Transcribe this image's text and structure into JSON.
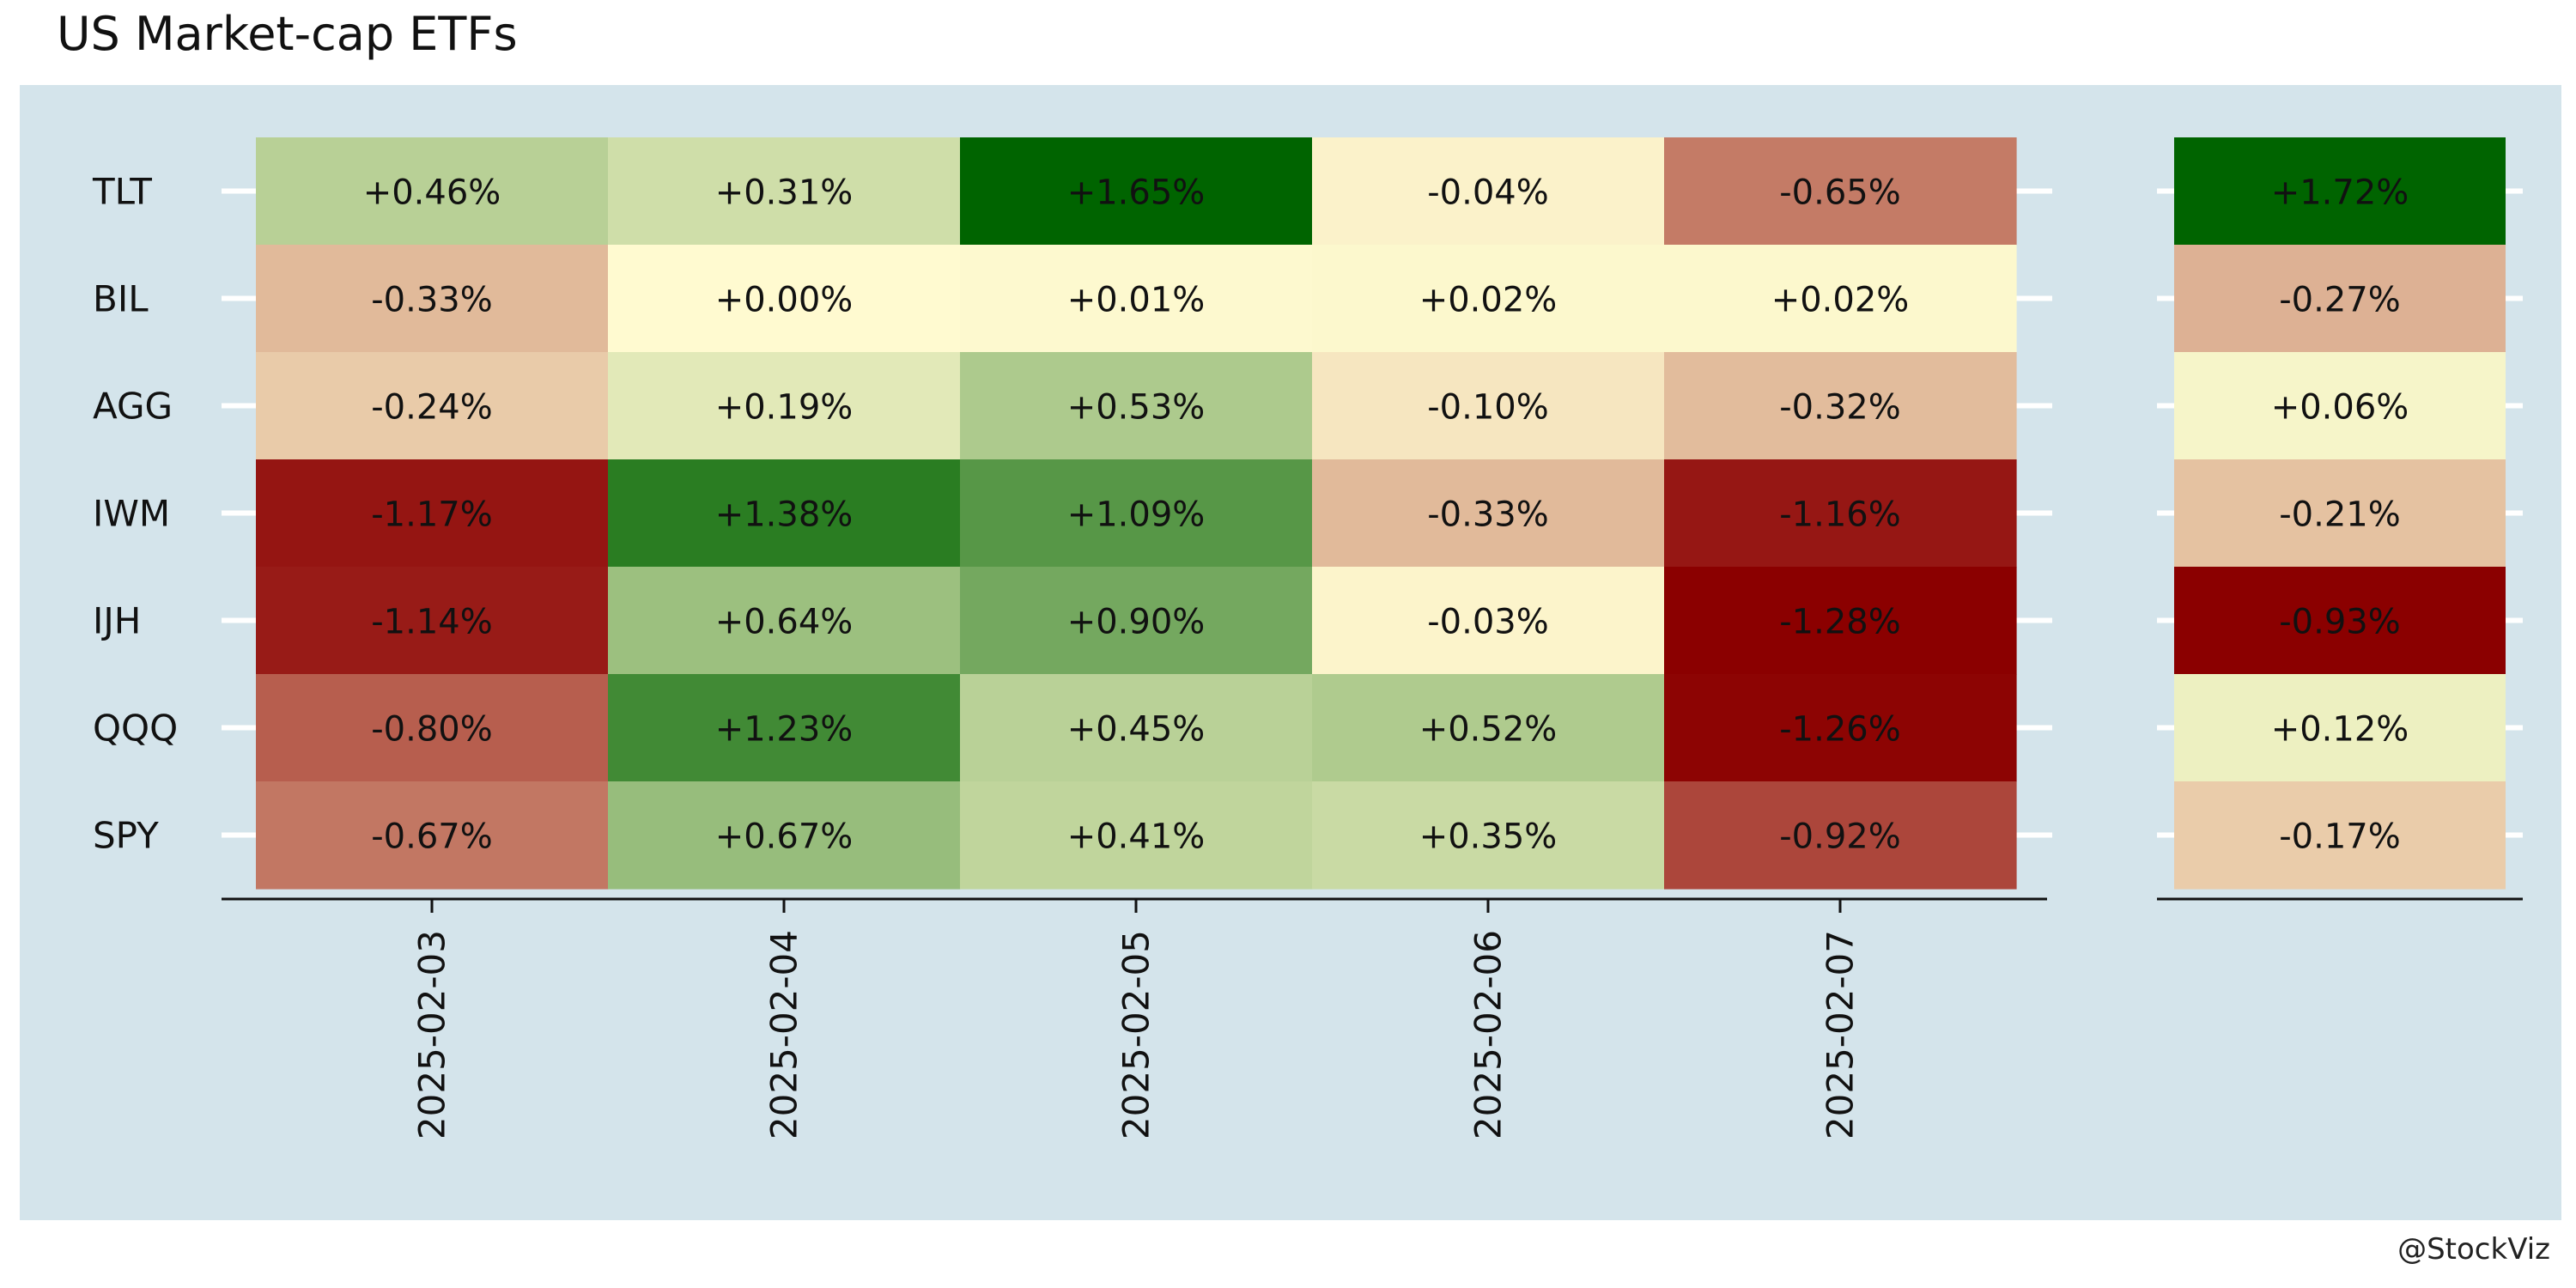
{
  "chart_data": {
    "type": "heatmap",
    "title": "US Market-cap ETFs",
    "rows": [
      "TLT",
      "BIL",
      "AGG",
      "IWM",
      "IJH",
      "QQQ",
      "SPY"
    ],
    "columns": [
      "2025-02-03",
      "2025-02-04",
      "2025-02-05",
      "2025-02-06",
      "2025-02-07"
    ],
    "values": [
      [
        0.46,
        0.31,
        1.65,
        -0.04,
        -0.65
      ],
      [
        -0.33,
        0.0,
        0.01,
        0.02,
        0.02
      ],
      [
        -0.24,
        0.19,
        0.53,
        -0.1,
        -0.32
      ],
      [
        -1.17,
        1.38,
        1.09,
        -0.33,
        -1.16
      ],
      [
        -1.14,
        0.64,
        0.9,
        -0.03,
        -1.28
      ],
      [
        -0.8,
        1.23,
        0.45,
        0.52,
        -1.26
      ],
      [
        -0.67,
        0.67,
        0.41,
        0.35,
        -0.92
      ]
    ],
    "labels": [
      [
        "+0.46%",
        "+0.31%",
        "+1.65%",
        "-0.04%",
        "-0.65%"
      ],
      [
        "-0.33%",
        "+0.00%",
        "+0.01%",
        "+0.02%",
        "+0.02%"
      ],
      [
        "-0.24%",
        "+0.19%",
        "+0.53%",
        "-0.10%",
        "-0.32%"
      ],
      [
        "-1.17%",
        "+1.38%",
        "+1.09%",
        "-0.33%",
        "-1.16%"
      ],
      [
        "-1.14%",
        "+0.64%",
        "+0.90%",
        "-0.03%",
        "-1.28%"
      ],
      [
        "-0.80%",
        "+1.23%",
        "+0.45%",
        "+0.52%",
        "-1.26%"
      ],
      [
        "-0.67%",
        "+0.67%",
        "+0.41%",
        "+0.35%",
        "-0.92%"
      ]
    ],
    "total_values": [
      1.72,
      -0.27,
      0.06,
      -0.21,
      -0.93,
      0.12,
      -0.17
    ],
    "total_labels": [
      "+1.72%",
      "-0.27%",
      "+0.06%",
      "-0.21%",
      "-0.93%",
      "+0.12%",
      "-0.17%"
    ],
    "colors": {
      "red": "#8b0000",
      "mid": "#fffad0",
      "green": "#006400",
      "panel_background": "#d4e4eb"
    },
    "watermark": "@StockViz"
  }
}
